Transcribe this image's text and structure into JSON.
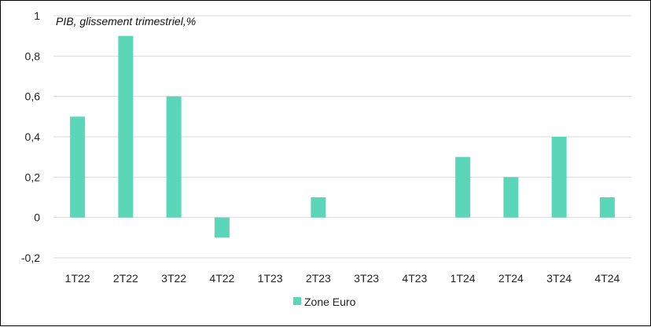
{
  "chart_data": {
    "type": "bar",
    "title": "PIB, glissement trimestriel,%",
    "xlabel": "",
    "ylabel": "",
    "categories": [
      "1T22",
      "2T22",
      "3T22",
      "4T22",
      "1T23",
      "2T23",
      "3T23",
      "4T23",
      "1T24",
      "2T24",
      "3T24",
      "4T24"
    ],
    "series": [
      {
        "name": "Zone Euro",
        "color": "#5bd6b8",
        "values": [
          0.5,
          0.9,
          0.6,
          -0.1,
          0.0,
          0.1,
          0.0,
          0.0,
          0.3,
          0.2,
          0.4,
          0.1
        ]
      }
    ],
    "ylim": [
      -0.2,
      1.0
    ],
    "yticks": [
      -0.2,
      0,
      0.2,
      0.4,
      0.6,
      0.8,
      1
    ],
    "ytick_labels": [
      "-0,2",
      "0",
      "0,2",
      "0,4",
      "0,6",
      "0,8",
      "1"
    ],
    "grid": true,
    "legend_position": "bottom-center"
  }
}
